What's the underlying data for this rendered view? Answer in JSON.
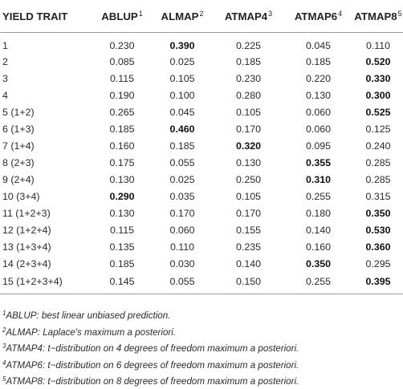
{
  "table": {
    "headers": [
      {
        "label": "YIELD TRAIT",
        "sup": ""
      },
      {
        "label": "ABLUP",
        "sup": "1"
      },
      {
        "label": "ALMAP",
        "sup": "2"
      },
      {
        "label": "ATMAP4",
        "sup": "3"
      },
      {
        "label": "ATMAP6",
        "sup": "4"
      },
      {
        "label": "ATMAP8",
        "sup": "5"
      }
    ],
    "rows": [
      {
        "trait": "1",
        "values": [
          "0.230",
          "0.390",
          "0.225",
          "0.045",
          "0.110"
        ],
        "bold": [
          false,
          true,
          false,
          false,
          false
        ]
      },
      {
        "trait": "2",
        "values": [
          "0.085",
          "0.025",
          "0.185",
          "0.185",
          "0.520"
        ],
        "bold": [
          false,
          false,
          false,
          false,
          true
        ]
      },
      {
        "trait": "3",
        "values": [
          "0.115",
          "0.105",
          "0.230",
          "0.220",
          "0.330"
        ],
        "bold": [
          false,
          false,
          false,
          false,
          true
        ]
      },
      {
        "trait": "4",
        "values": [
          "0.190",
          "0.100",
          "0.280",
          "0.130",
          "0.300"
        ],
        "bold": [
          false,
          false,
          false,
          false,
          true
        ]
      },
      {
        "trait": "5 (1+2)",
        "values": [
          "0.265",
          "0.045",
          "0.105",
          "0.060",
          "0.525"
        ],
        "bold": [
          false,
          false,
          false,
          false,
          true
        ]
      },
      {
        "trait": "6 (1+3)",
        "values": [
          "0.185",
          "0.460",
          "0.170",
          "0.060",
          "0.125"
        ],
        "bold": [
          false,
          true,
          false,
          false,
          false
        ]
      },
      {
        "trait": "7 (1+4)",
        "values": [
          "0.160",
          "0.185",
          "0.320",
          "0.095",
          "0.240"
        ],
        "bold": [
          false,
          false,
          true,
          false,
          false
        ]
      },
      {
        "trait": "8 (2+3)",
        "values": [
          "0.175",
          "0.055",
          "0.130",
          "0.355",
          "0.285"
        ],
        "bold": [
          false,
          false,
          false,
          true,
          false
        ]
      },
      {
        "trait": "9 (2+4)",
        "values": [
          "0.130",
          "0.025",
          "0.250",
          "0.310",
          "0.285"
        ],
        "bold": [
          false,
          false,
          false,
          true,
          false
        ]
      },
      {
        "trait": "10 (3+4)",
        "values": [
          "0.290",
          "0.035",
          "0.105",
          "0.255",
          "0.315"
        ],
        "bold": [
          true,
          false,
          false,
          false,
          false
        ]
      },
      {
        "trait": "11 (1+2+3)",
        "values": [
          "0.130",
          "0.170",
          "0.170",
          "0.180",
          "0.350"
        ],
        "bold": [
          false,
          false,
          false,
          false,
          true
        ]
      },
      {
        "trait": "12 (1+2+4)",
        "values": [
          "0.115",
          "0.060",
          "0.155",
          "0.140",
          "0.530"
        ],
        "bold": [
          false,
          false,
          false,
          false,
          true
        ]
      },
      {
        "trait": "13 (1+3+4)",
        "values": [
          "0.135",
          "0.110",
          "0.235",
          "0.160",
          "0.360"
        ],
        "bold": [
          false,
          false,
          false,
          false,
          true
        ]
      },
      {
        "trait": "14 (2+3+4)",
        "values": [
          "0.185",
          "0.030",
          "0.140",
          "0.350",
          "0.295"
        ],
        "bold": [
          false,
          false,
          false,
          true,
          false
        ]
      },
      {
        "trait": "15 (1+2+3+4)",
        "values": [
          "0.145",
          "0.055",
          "0.150",
          "0.255",
          "0.395"
        ],
        "bold": [
          false,
          false,
          false,
          false,
          true
        ]
      }
    ]
  },
  "footnotes": [
    {
      "sup": "1",
      "text": "ABLUP: best linear unbiased prediction."
    },
    {
      "sup": "2",
      "text": "ALMAP: Laplace's maximum a posteriori."
    },
    {
      "sup": "3",
      "text": "ATMAP4: t−distribution on 4 degrees of freedom maximum a posteriori."
    },
    {
      "sup": "4",
      "text": "ATMAP6: t−distribution on 6 degrees of freedom maximum a posteriori."
    },
    {
      "sup": "5",
      "text": "ATMAP8: t−distribution on 8 degrees of freedom maximum a posteriori."
    }
  ]
}
